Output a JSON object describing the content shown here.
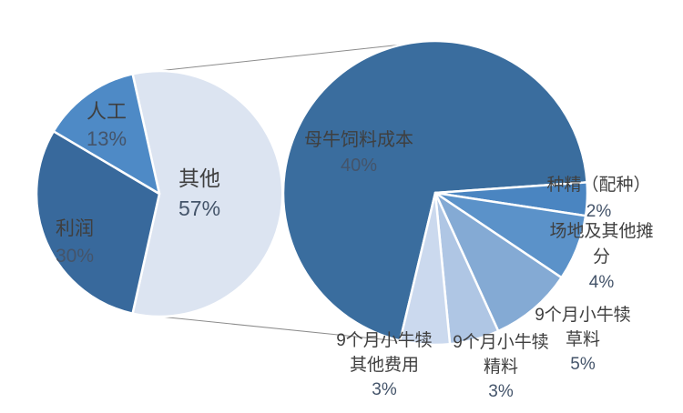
{
  "chart_data": {
    "type": "pie",
    "subtype": "pie-of-pie",
    "title": "",
    "legend": "none",
    "connector_color": "#8c8c8c",
    "slice_border_color": "#ffffff",
    "primary": {
      "total": 100,
      "start_bearing_deg": -12.6,
      "center": [
        175,
        213
      ],
      "radius": 135,
      "slices": [
        {
          "id": "other",
          "name": "其他",
          "value": 57,
          "pct_label": "57%",
          "color": "#dce4f1"
        },
        {
          "id": "profit",
          "name": "利润",
          "value": 30,
          "pct_label": "30%",
          "color": "#38699c"
        },
        {
          "id": "labor",
          "name": "人工",
          "value": 13,
          "pct_label": "13%",
          "color": "#4e8ac6"
        }
      ]
    },
    "secondary": {
      "breakdown_of": "其他",
      "total": 57,
      "start_bearing_deg": 193.4,
      "center": [
        478,
        212
      ],
      "radius": 167,
      "slices": [
        {
          "id": "cow-feed-cost",
          "name": "母牛饲料成本",
          "value": 40,
          "pct_label": "40%",
          "color": "#3a6d9e"
        },
        {
          "id": "semen",
          "name": "种精（配种）",
          "value": 2,
          "pct_label": "2%",
          "color": "#4a85c1"
        },
        {
          "id": "site-share",
          "name": "场地及其他摊分",
          "value": 4,
          "pct_label": "4%",
          "color": "#5b92c9"
        },
        {
          "id": "calf-forage",
          "name": "9个月小牛犊草料",
          "value": 5,
          "pct_label": "5%",
          "color": "#84aad4"
        },
        {
          "id": "calf-concentrate",
          "name": "9个月小牛犊精料",
          "value": 3,
          "pct_label": "3%",
          "color": "#afc6e4"
        },
        {
          "id": "calf-other-cost",
          "name": "9个月小牛犊其他费用",
          "value": 3,
          "pct_label": "3%",
          "color": "#cbd9ee"
        }
      ]
    },
    "connector_lines": [
      [
        146,
        81,
        478,
        45
      ],
      [
        146,
        345,
        478,
        379
      ]
    ]
  },
  "labels": {
    "rengong": {
      "line1": "人工",
      "pct": "13%"
    },
    "qita": {
      "line1": "其他",
      "pct": "57%"
    },
    "lirun": {
      "line1": "利润",
      "pct": "30%"
    },
    "muniu": {
      "line1": "母牛饲料成本",
      "pct": "40%"
    },
    "zhongjing": {
      "line1": "种精（配种）",
      "pct": "2%"
    },
    "changdi": {
      "line1": "场地及其他摊",
      "line2": "分",
      "pct": "4%"
    },
    "caoliao": {
      "line1": "9个月小牛犊",
      "line2": "草料",
      "pct": "5%"
    },
    "jingliao": {
      "line1": "9个月小牛犊",
      "line2": "精料",
      "pct": "3%"
    },
    "qitafeiyong": {
      "line1": "9个月小牛犊",
      "line2": "其他费用",
      "pct": "3%"
    }
  }
}
